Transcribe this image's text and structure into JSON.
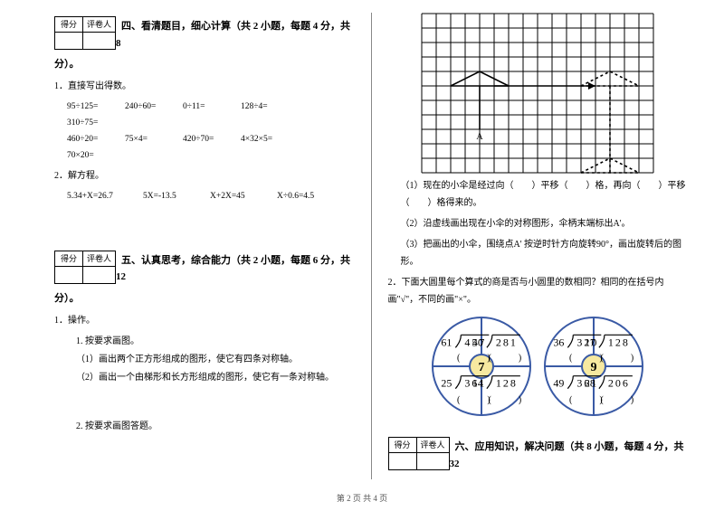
{
  "scorebox": {
    "c1": "得分",
    "c2": "评卷人"
  },
  "footer": "第 2 页 共 4 页",
  "left": {
    "sec4_title": "四、看清题目，细心计算（共 2 小题，每题 4 分，共 8",
    "sec4_tail": "分）。",
    "p1": "1．直接写出得数。",
    "calc1": [
      "95÷125=",
      "240÷60=",
      "0÷11=",
      "128÷4=",
      "310÷75="
    ],
    "calc2": [
      "460÷20=",
      "75×4=",
      "420÷70=",
      "4×32×5=",
      "70×20="
    ],
    "p2": "2．解方程。",
    "eq": [
      "5.34+X=26.7",
      "5X=-13.5",
      "X+2X=45",
      "X÷0.6=4.5"
    ],
    "sec5_title": "五、认真思考，综合能力（共 2 小题，每题 6 分，共 12",
    "sec5_tail": "分）。",
    "p5_1": "1．操作。",
    "p5_1a": "1. 按要求画图。",
    "p5_1b": "（1）画出两个正方形组成的图形，使它有四条对称轴。",
    "p5_1c": "（2）画出一个由梯形和长方形组成的图形，使它有一条对称轴。",
    "p5_2": "2. 按要求画图答题。"
  },
  "right": {
    "q1": "（1）现在的小伞是经过向（　　）平移（　　）格，再向（　　）平移（　　）格得来的。",
    "q2": "（2）沿虚线画出现在小伞的对称图形，伞柄末端标出A'。",
    "q3": "（3）把画出的小伞，围绕点A' 按逆时针方向旋转90°，画出旋转后的图形。",
    "p2": "2．下面大圆里每个算式的商是否与小圆里的数相同？相同的在括号内画\"√\"，不同的画\"×\"。",
    "sec6_title": "六、应用知识，解决问题（共 8 小题，每题 4 分，共 32",
    "grid": {
      "cols": 16,
      "rows": 11,
      "cell": 16,
      "strokeColor": "#000000",
      "strokeWidth": 1,
      "umbrella": {
        "apexCol": 4,
        "apexRow": 4,
        "span": 4,
        "poleLen": 3
      },
      "ghost": {
        "apexCol": 13,
        "apexRow": 4,
        "span": 4,
        "poleLen": 3,
        "dash": "3,3"
      },
      "ghost2": {
        "apexCol": 13,
        "apexRow": 10,
        "span": 4,
        "poleLen": -3,
        "dash": "3,3"
      },
      "arrow": {
        "fromCol": 5,
        "fromRow": 5,
        "toCol": 12
      },
      "labelA": "A"
    },
    "circles": {
      "radius": 54,
      "innerRadius": 13,
      "labels": [
        "7",
        "9"
      ],
      "left": {
        "tl": {
          "d": "61",
          "n": "457"
        },
        "tr": {
          "d": "40",
          "n": "281"
        },
        "bl": {
          "d": "25",
          "n": "361"
        },
        "br": {
          "d": "14",
          "n": "128"
        }
      },
      "right": {
        "tl": {
          "d": "36",
          "n": "320"
        },
        "tr": {
          "d": "17",
          "n": "128"
        },
        "bl": {
          "d": "49",
          "n": "361"
        },
        "br": {
          "d": "28",
          "n": "206"
        }
      },
      "paren": "(　　　)",
      "strokeColor": "#3a5aa5",
      "innerFill": "#f7e9a0"
    }
  }
}
